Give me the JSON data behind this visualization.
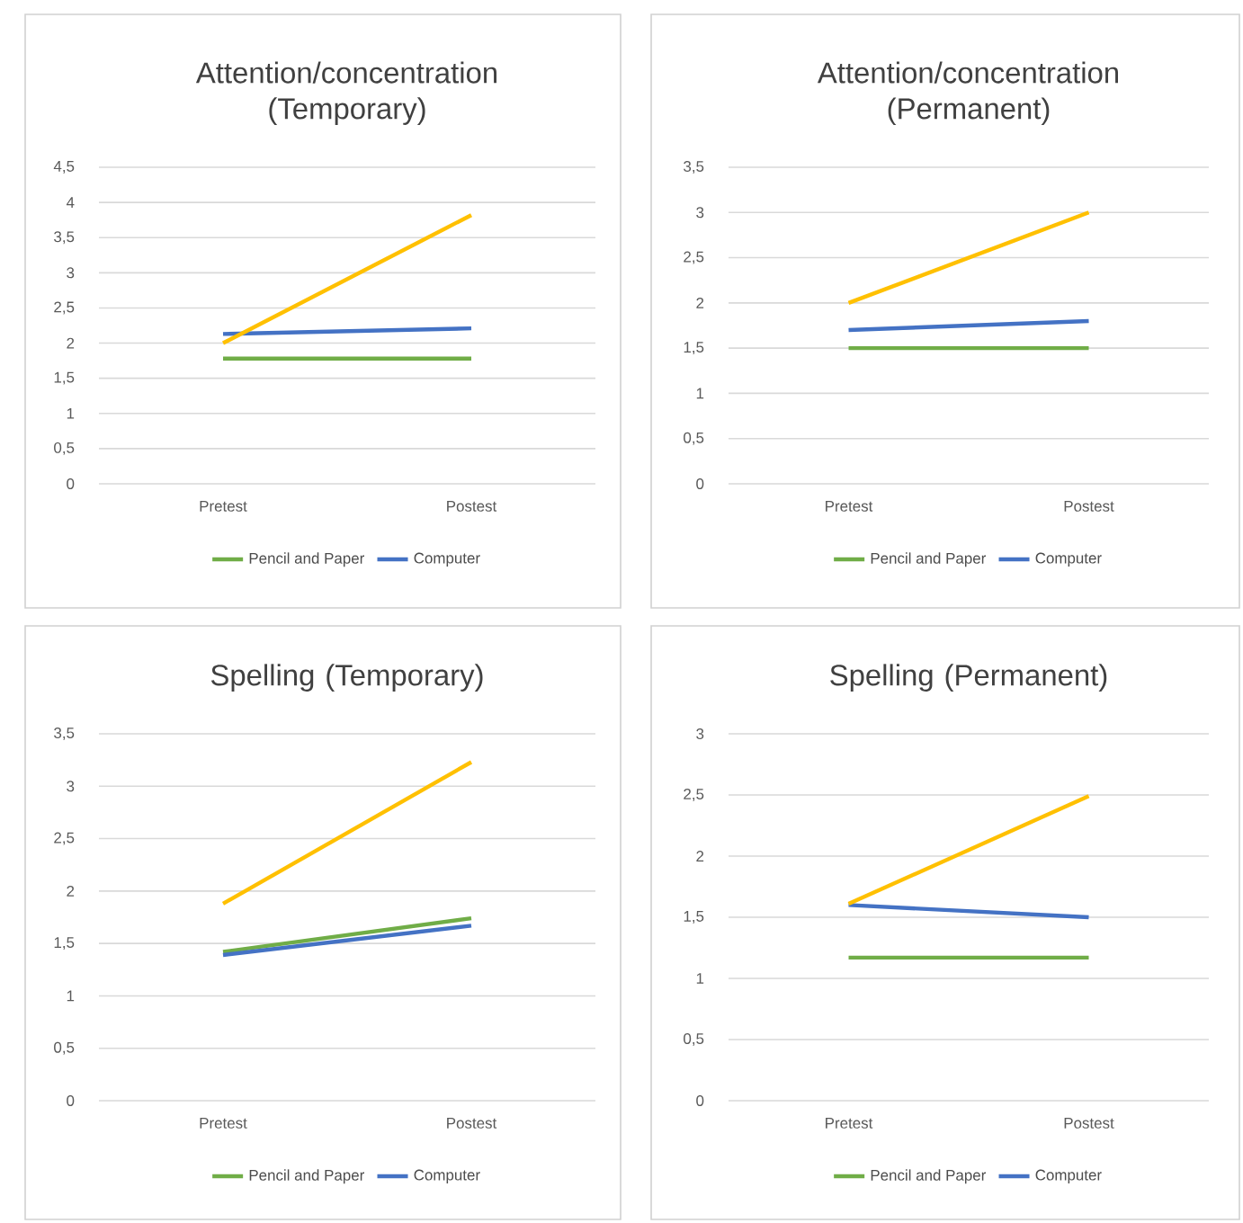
{
  "chart_data": [
    {
      "type": "line",
      "title": "Attention/concentration (Temporary)",
      "categories": [
        "Pretest",
        "Postest"
      ],
      "series": [
        {
          "name": "Pencil and Paper",
          "color": "#70ad47",
          "values": [
            1.78,
            1.78
          ]
        },
        {
          "name": "Computer",
          "color": "#4472c4",
          "values": [
            2.13,
            2.21
          ]
        },
        {
          "color": "#ffc000",
          "values": [
            2.0,
            3.82
          ]
        }
      ],
      "ylim": [
        0,
        4.5
      ],
      "yticks": [
        0,
        {
          "value": 0.5,
          "label": "0,5"
        },
        1,
        {
          "value": 1.5,
          "label": "1,5"
        },
        2,
        {
          "value": 2.5,
          "label": "2,5"
        },
        3,
        {
          "value": 3.5,
          "label": "3,5"
        },
        4,
        {
          "value": 4.5,
          "label": "4,5"
        }
      ],
      "grid": "y",
      "legend": "bottom"
    },
    {
      "type": "line",
      "title": "Attention/concentration (Permanent)",
      "categories": [
        "Pretest",
        "Postest"
      ],
      "series": [
        {
          "name": "Pencil and Paper",
          "color": "#70ad47",
          "values": [
            1.5,
            1.5
          ]
        },
        {
          "name": "Computer",
          "color": "#4472c4",
          "values": [
            1.7,
            1.8
          ]
        },
        {
          "color": "#ffc000",
          "values": [
            2.0,
            3.0
          ]
        }
      ],
      "ylim": [
        0,
        3.5
      ],
      "yticks": [
        0,
        {
          "value": 0.5,
          "label": "0,5"
        },
        1,
        {
          "value": 1.5,
          "label": "1,5"
        },
        2,
        {
          "value": 2.5,
          "label": "2,5"
        },
        3,
        {
          "value": 3.5,
          "label": "3,5"
        }
      ],
      "grid": "y",
      "legend": "bottom"
    },
    {
      "type": "line",
      "title": "Spelling (Temporary)",
      "categories": [
        "Pretest",
        "Postest"
      ],
      "series": [
        {
          "name": "Pencil and Paper",
          "color": "#70ad47",
          "values": [
            1.42,
            1.74
          ]
        },
        {
          "name": "Computer",
          "color": "#4472c4",
          "values": [
            1.39,
            1.67
          ]
        },
        {
          "color": "#ffc000",
          "values": [
            1.88,
            3.23
          ]
        }
      ],
      "ylim": [
        0,
        3.5
      ],
      "yticks": [
        0,
        {
          "value": 0.5,
          "label": "0,5"
        },
        1,
        {
          "value": 1.5,
          "label": "1,5"
        },
        2,
        {
          "value": 2.5,
          "label": "2,5"
        },
        3,
        {
          "value": 3.5,
          "label": "3,5"
        }
      ],
      "grid": "y",
      "legend": "bottom"
    },
    {
      "type": "line",
      "title": "Spelling (Permanent)",
      "categories": [
        "Pretest",
        "Postest"
      ],
      "series": [
        {
          "name": "Pencil and Paper",
          "color": "#70ad47",
          "values": [
            1.17,
            1.17
          ]
        },
        {
          "name": "Computer",
          "color": "#4472c4",
          "values": [
            1.6,
            1.5
          ]
        },
        {
          "color": "#ffc000",
          "values": [
            1.61,
            2.49
          ]
        }
      ],
      "ylim": [
        0,
        3
      ],
      "yticks": [
        0,
        {
          "value": 0.5,
          "label": "0,5"
        },
        1,
        {
          "value": 1.5,
          "label": "1,5"
        },
        2,
        {
          "value": 2.5,
          "label": "2,5"
        },
        3
      ],
      "grid": "y",
      "legend": "bottom"
    }
  ]
}
